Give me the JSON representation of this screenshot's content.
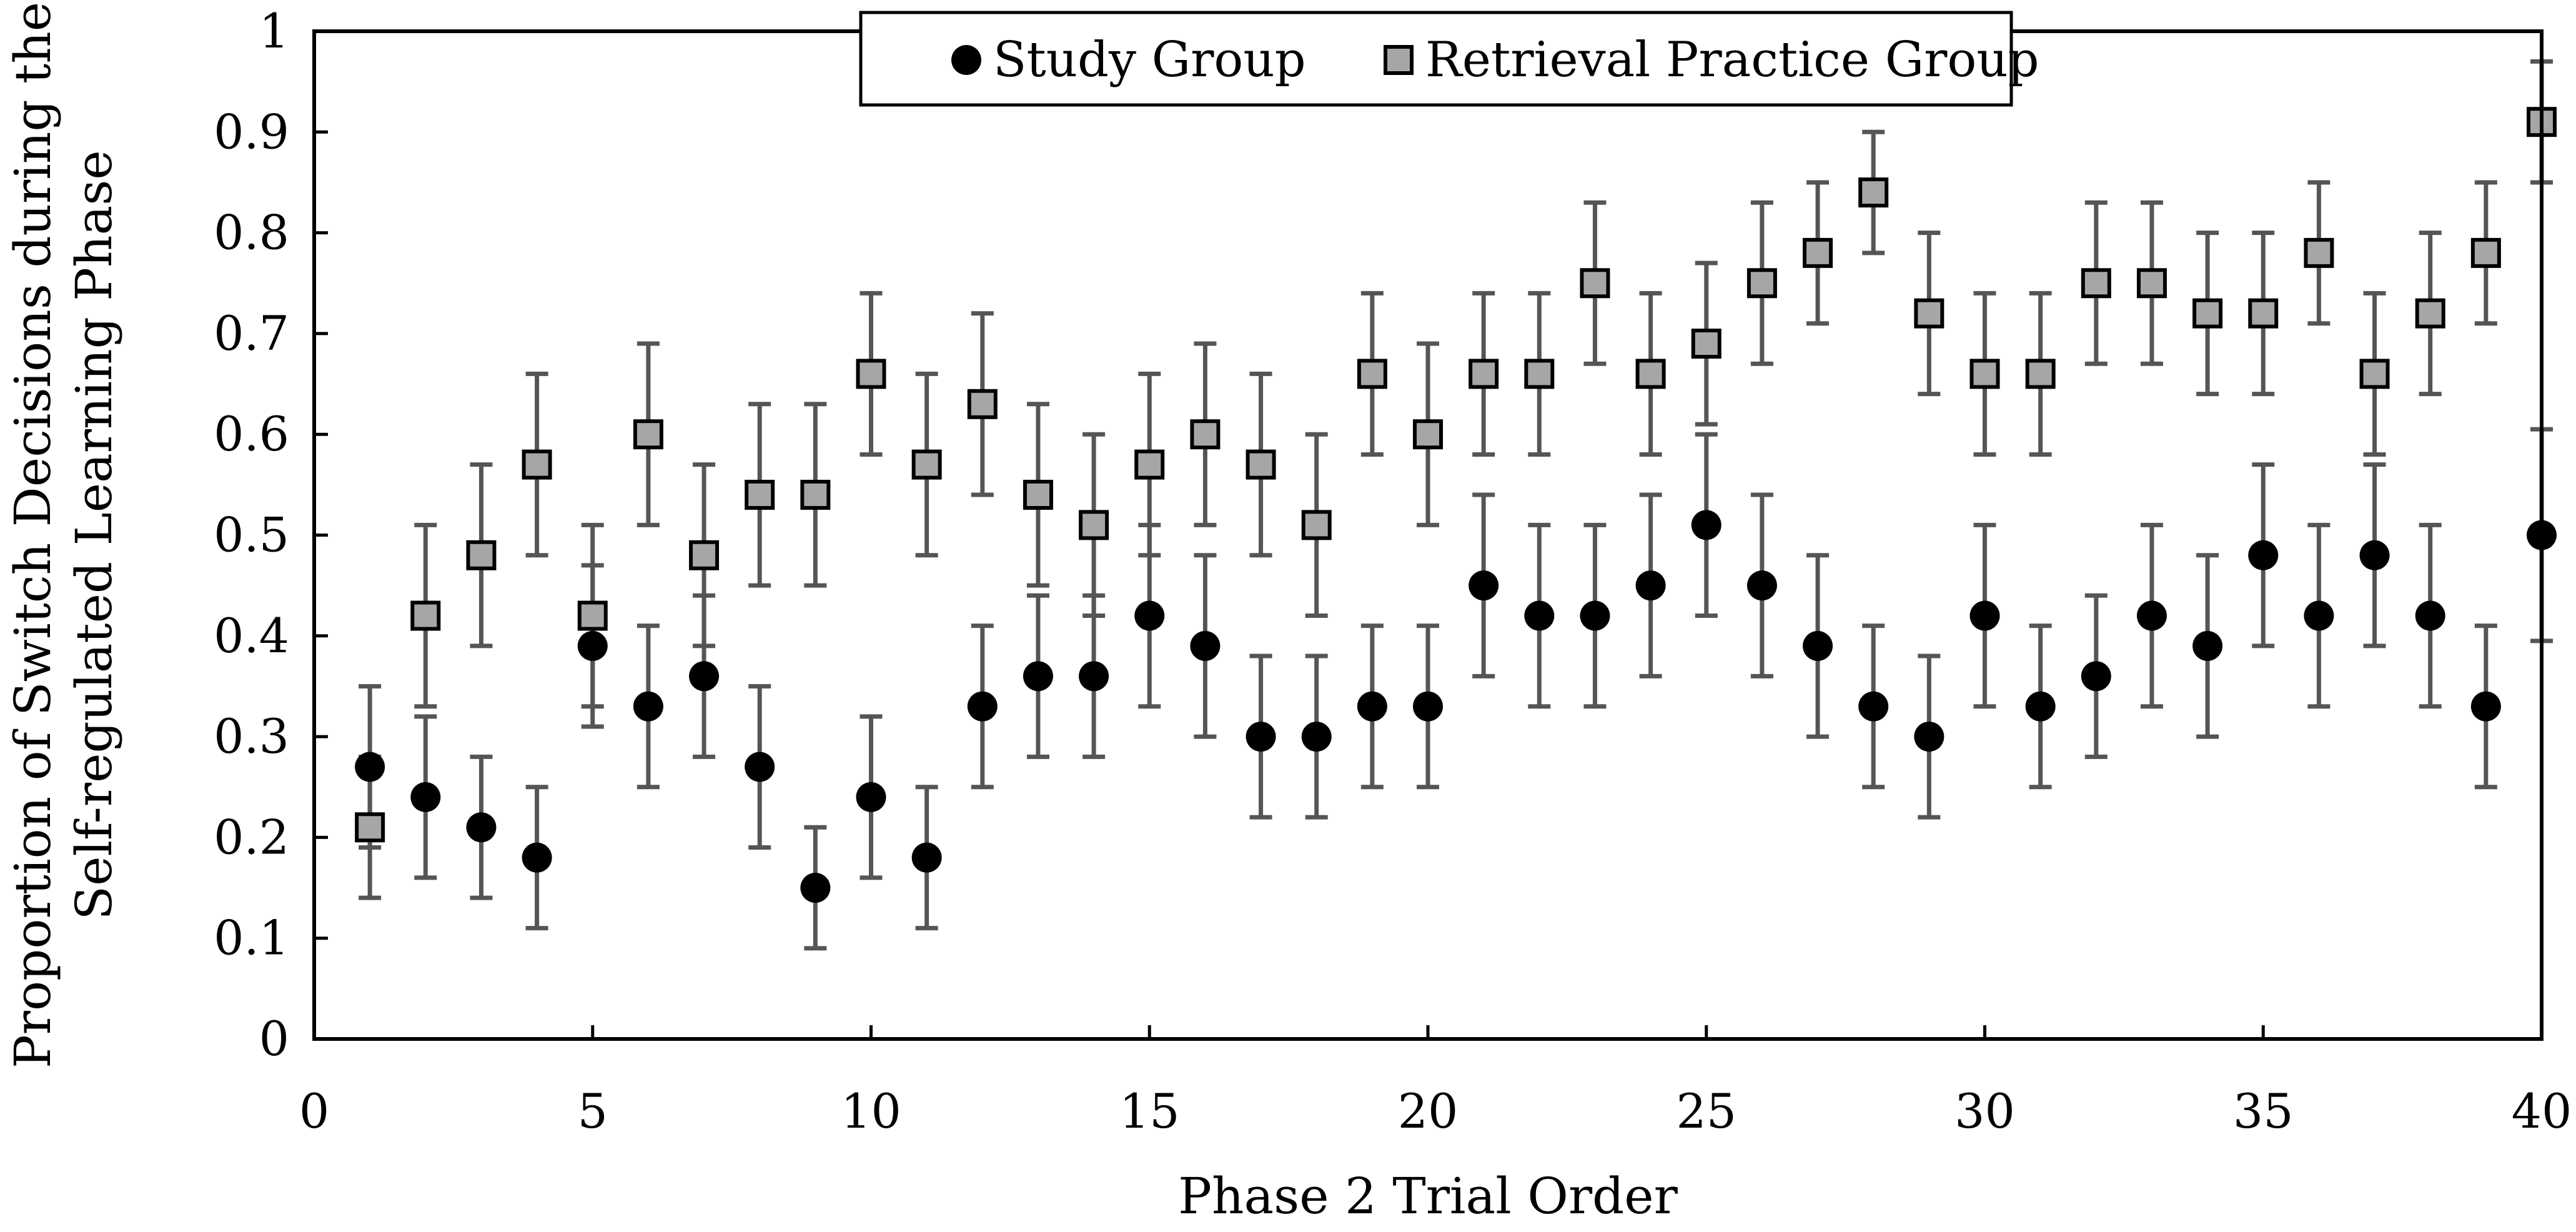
{
  "chart_data": {
    "type": "scatter",
    "xlabel": "Phase 2 Trial Order",
    "ylabel_lines": [
      "Proportion of Switch Decisions during the",
      "Self-regulated Learning Phase"
    ],
    "xlim": [
      0,
      40
    ],
    "ylim": [
      0,
      1
    ],
    "xticks": [
      "0",
      "5",
      "10",
      "15",
      "20",
      "25",
      "30",
      "35",
      "40"
    ],
    "yticks": [
      "0",
      "0.1",
      "0.2",
      "0.3",
      "0.4",
      "0.5",
      "0.6",
      "0.7",
      "0.8",
      "0.9",
      "1"
    ],
    "grid": false,
    "legend_position": "top-center",
    "series": [
      {
        "name": "Study Group",
        "marker": "circle",
        "color": "#000000",
        "x": [
          1,
          2,
          3,
          4,
          5,
          6,
          7,
          8,
          9,
          10,
          11,
          12,
          13,
          14,
          15,
          16,
          17,
          18,
          19,
          20,
          21,
          22,
          23,
          24,
          25,
          26,
          27,
          28,
          29,
          30,
          31,
          32,
          33,
          34,
          35,
          36,
          37,
          38,
          39,
          40
        ],
        "y": [
          0.27,
          0.24,
          0.21,
          0.18,
          0.39,
          0.33,
          0.36,
          0.27,
          0.15,
          0.24,
          0.18,
          0.33,
          0.36,
          0.36,
          0.42,
          0.39,
          0.3,
          0.3,
          0.33,
          0.33,
          0.45,
          0.42,
          0.42,
          0.45,
          0.51,
          0.45,
          0.39,
          0.33,
          0.3,
          0.42,
          0.33,
          0.36,
          0.42,
          0.39,
          0.48,
          0.42,
          0.48,
          0.42,
          0.33,
          0.5
        ],
        "error": [
          0.08,
          0.08,
          0.07,
          0.07,
          0.08,
          0.08,
          0.08,
          0.08,
          0.06,
          0.08,
          0.07,
          0.08,
          0.08,
          0.08,
          0.09,
          0.09,
          0.08,
          0.08,
          0.08,
          0.08,
          0.09,
          0.09,
          0.09,
          0.09,
          0.09,
          0.09,
          0.09,
          0.08,
          0.08,
          0.09,
          0.08,
          0.08,
          0.09,
          0.09,
          0.09,
          0.09,
          0.09,
          0.09,
          0.08,
          0.105
        ]
      },
      {
        "name": "Retrieval Practice Group",
        "marker": "square",
        "color": "#a6a6a6",
        "x": [
          1,
          2,
          3,
          4,
          5,
          6,
          7,
          8,
          9,
          10,
          11,
          12,
          13,
          14,
          15,
          16,
          17,
          18,
          19,
          20,
          21,
          22,
          23,
          24,
          25,
          26,
          27,
          28,
          29,
          30,
          31,
          32,
          33,
          34,
          35,
          36,
          37,
          38,
          39,
          40
        ],
        "y": [
          0.21,
          0.42,
          0.48,
          0.57,
          0.42,
          0.6,
          0.48,
          0.54,
          0.54,
          0.66,
          0.57,
          0.63,
          0.54,
          0.51,
          0.57,
          0.6,
          0.57,
          0.51,
          0.66,
          0.6,
          0.66,
          0.66,
          0.75,
          0.66,
          0.69,
          0.75,
          0.78,
          0.84,
          0.72,
          0.66,
          0.66,
          0.75,
          0.75,
          0.72,
          0.72,
          0.78,
          0.66,
          0.72,
          0.78,
          0.91
        ],
        "error": [
          0.07,
          0.09,
          0.09,
          0.09,
          0.09,
          0.09,
          0.09,
          0.09,
          0.09,
          0.08,
          0.09,
          0.09,
          0.09,
          0.09,
          0.09,
          0.09,
          0.09,
          0.09,
          0.08,
          0.09,
          0.08,
          0.08,
          0.08,
          0.08,
          0.08,
          0.08,
          0.07,
          0.06,
          0.08,
          0.08,
          0.08,
          0.08,
          0.08,
          0.08,
          0.08,
          0.07,
          0.08,
          0.08,
          0.07,
          0.06
        ]
      }
    ]
  }
}
